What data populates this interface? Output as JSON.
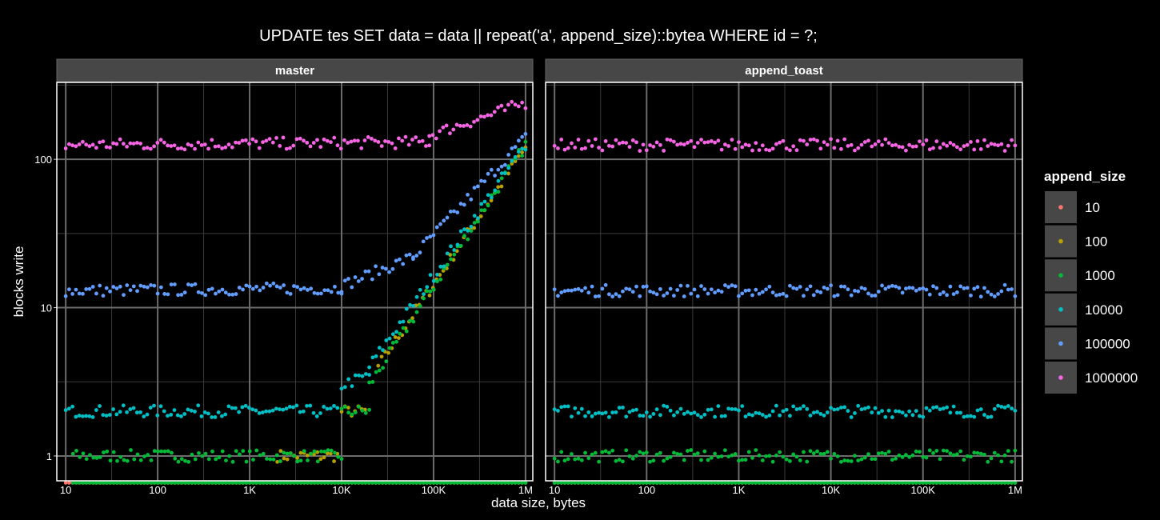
{
  "chart_data": {
    "type": "scatter",
    "title": "UPDATE tes SET data = data || repeat('a', append_size)::bytea WHERE id = ?;",
    "xlabel": "data size, bytes",
    "ylabel": "blocks write",
    "x_scale": "log10",
    "y_scale": "log10",
    "x_range": [
      8,
      1200000
    ],
    "y_range": [
      0.68,
      330
    ],
    "x_ticks": [
      {
        "value": 10,
        "label": "10"
      },
      {
        "value": 100,
        "label": "100"
      },
      {
        "value": 1000,
        "label": "1K"
      },
      {
        "value": 10000,
        "label": "10K"
      },
      {
        "value": 100000,
        "label": "100K"
      },
      {
        "value": 1000000,
        "label": "1M"
      }
    ],
    "y_ticks": [
      {
        "value": 1,
        "label": "1"
      },
      {
        "value": 10,
        "label": "10"
      },
      {
        "value": 100,
        "label": "100"
      }
    ],
    "grid": true,
    "legend": {
      "title": "append_size",
      "position": "right"
    },
    "panels": [
      {
        "name": "master",
        "series": [
          {
            "name": "10",
            "color": "#F8766D",
            "segments": [
              {
                "x0": 10,
                "x1": 1000000,
                "y0": 0.66,
                "y1": 0.66
              }
            ]
          },
          {
            "name": "100",
            "color": "#B79F00",
            "segments": [
              {
                "x0": 20,
                "x1": 1000000,
                "y0": 0.66,
                "y1": 0.66
              },
              {
                "x0": 2000,
                "x1": 9000,
                "y0": 1.0,
                "y1": 1.0
              },
              {
                "x0": 10000,
                "x1": 18000,
                "y0": 2.0,
                "y1": 2.0
              },
              {
                "x0": 25000,
                "x1": 1000000,
                "y0": 4.0,
                "y1": 120
              }
            ]
          },
          {
            "name": "1000",
            "color": "#00BA38",
            "segments": [
              {
                "x0": 12,
                "x1": 1000000,
                "y0": 0.66,
                "y1": 0.66
              },
              {
                "x0": 12,
                "x1": 10000,
                "y0": 1.0,
                "y1": 1.0
              },
              {
                "x0": 10000,
                "x1": 20000,
                "y0": 2.0,
                "y1": 2.0
              },
              {
                "x0": 20000,
                "x1": 1000000,
                "y0": 3.0,
                "y1": 125
              }
            ]
          },
          {
            "name": "10000",
            "color": "#00BFC4",
            "segments": [
              {
                "x0": 10,
                "x1": 9000,
                "y0": 2.0,
                "y1": 2.0
              },
              {
                "x0": 10000,
                "x1": 20000,
                "y0": 3.0,
                "y1": 3.5
              },
              {
                "x0": 20000,
                "x1": 1000000,
                "y0": 4.0,
                "y1": 125
              }
            ]
          },
          {
            "name": "100000",
            "color": "#619CFF",
            "segments": [
              {
                "x0": 10,
                "x1": 10000,
                "y0": 13,
                "y1": 13.5
              },
              {
                "x0": 10000,
                "x1": 60000,
                "y0": 14,
                "y1": 22
              },
              {
                "x0": 60000,
                "x1": 1000000,
                "y0": 22,
                "y1": 140
              }
            ]
          },
          {
            "name": "1000000",
            "color": "#F564E3",
            "segments": [
              {
                "x0": 10,
                "x1": 90000,
                "y0": 125,
                "y1": 130
              },
              {
                "x0": 90000,
                "x1": 1000000,
                "y0": 145,
                "y1": 240
              }
            ]
          }
        ]
      },
      {
        "name": "append_toast",
        "series": [
          {
            "name": "10",
            "color": "#F8766D",
            "segments": [
              {
                "x0": 10,
                "x1": 1000000,
                "y0": 0.66,
                "y1": 0.66
              }
            ]
          },
          {
            "name": "100",
            "color": "#B79F00",
            "segments": [
              {
                "x0": 10,
                "x1": 1000000,
                "y0": 0.66,
                "y1": 0.66
              }
            ]
          },
          {
            "name": "1000",
            "color": "#00BA38",
            "segments": [
              {
                "x0": 10,
                "x1": 1000000,
                "y0": 0.66,
                "y1": 0.66
              },
              {
                "x0": 10,
                "x1": 1000000,
                "y0": 1.0,
                "y1": 1.0
              }
            ]
          },
          {
            "name": "10000",
            "color": "#00BFC4",
            "segments": [
              {
                "x0": 10,
                "x1": 1000000,
                "y0": 2.0,
                "y1": 2.0
              }
            ]
          },
          {
            "name": "100000",
            "color": "#619CFF",
            "segments": [
              {
                "x0": 10,
                "x1": 1000000,
                "y0": 13,
                "y1": 13
              }
            ]
          },
          {
            "name": "1000000",
            "color": "#F564E3",
            "segments": [
              {
                "x0": 10,
                "x1": 1000000,
                "y0": 125,
                "y1": 125
              }
            ]
          }
        ]
      }
    ]
  }
}
